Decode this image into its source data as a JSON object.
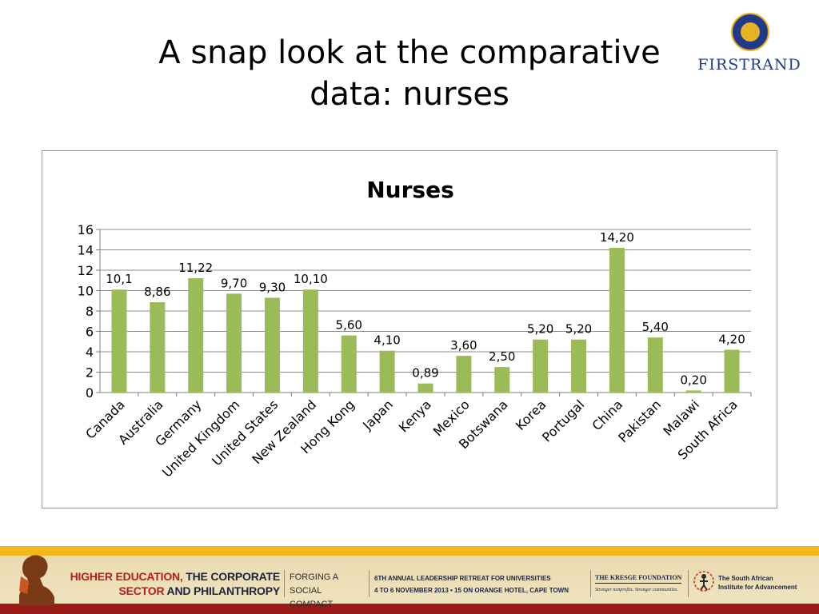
{
  "slide": {
    "title": "A snap look at the comparative data: nurses",
    "logo_text": "FIRSTRAND"
  },
  "chart_data": {
    "type": "bar",
    "title": "Nurses",
    "xlabel": "",
    "ylabel": "",
    "ylim": [
      0,
      16
    ],
    "yticks": [
      "0",
      "2",
      "4",
      "6",
      "8",
      "10",
      "12",
      "14",
      "16"
    ],
    "grid": true,
    "legend": "none",
    "bar_color": "#9bbb59",
    "categories": [
      "Canada",
      "Australia",
      "Germany",
      "United Kingdom",
      "United States",
      "New Zealand",
      "Hong Kong",
      "Japan",
      "Kenya",
      "Mexico",
      "Botswana",
      "Korea",
      "Portugal",
      "China",
      "Pakistan",
      "Malawi",
      "South Africa"
    ],
    "values": [
      10.1,
      8.86,
      11.22,
      9.7,
      9.3,
      10.1,
      5.6,
      4.1,
      0.89,
      3.6,
      2.5,
      5.2,
      5.2,
      14.2,
      5.4,
      0.2,
      4.2
    ],
    "data_labels": [
      "10,1",
      "8,86",
      "11,22",
      "9,70",
      "9,30",
      "10,10",
      "5,60",
      "4,10",
      "0,89",
      "3,60",
      "2,50",
      "5,20",
      "5,20",
      "14,20",
      "5,40",
      "0,20",
      "4,20"
    ]
  },
  "footer": {
    "main_line1_red": "HIGHER EDUCATION,",
    "main_line1_rest": " THE CORPORATE",
    "main_line2_red": "SECTOR",
    "main_line2_rest": " AND PHILANTHROPY",
    "forging_line1": "FORGING A",
    "forging_line2": "SOCIAL COMPACT",
    "event_line1": "6TH ANNUAL LEADERSHIP RETREAT FOR UNIVERSITIES",
    "event_line2": "4 TO 6 NOVEMBER 2013 • 15 ON ORANGE HOTEL, CAPE TOWN",
    "kresge_name": "THE KRESGE FOUNDATION",
    "kresge_tagline": "Stronger nonprofits. Stronger communities.",
    "saia_line1": "The South African",
    "saia_line2": "Institute for Advancement"
  }
}
